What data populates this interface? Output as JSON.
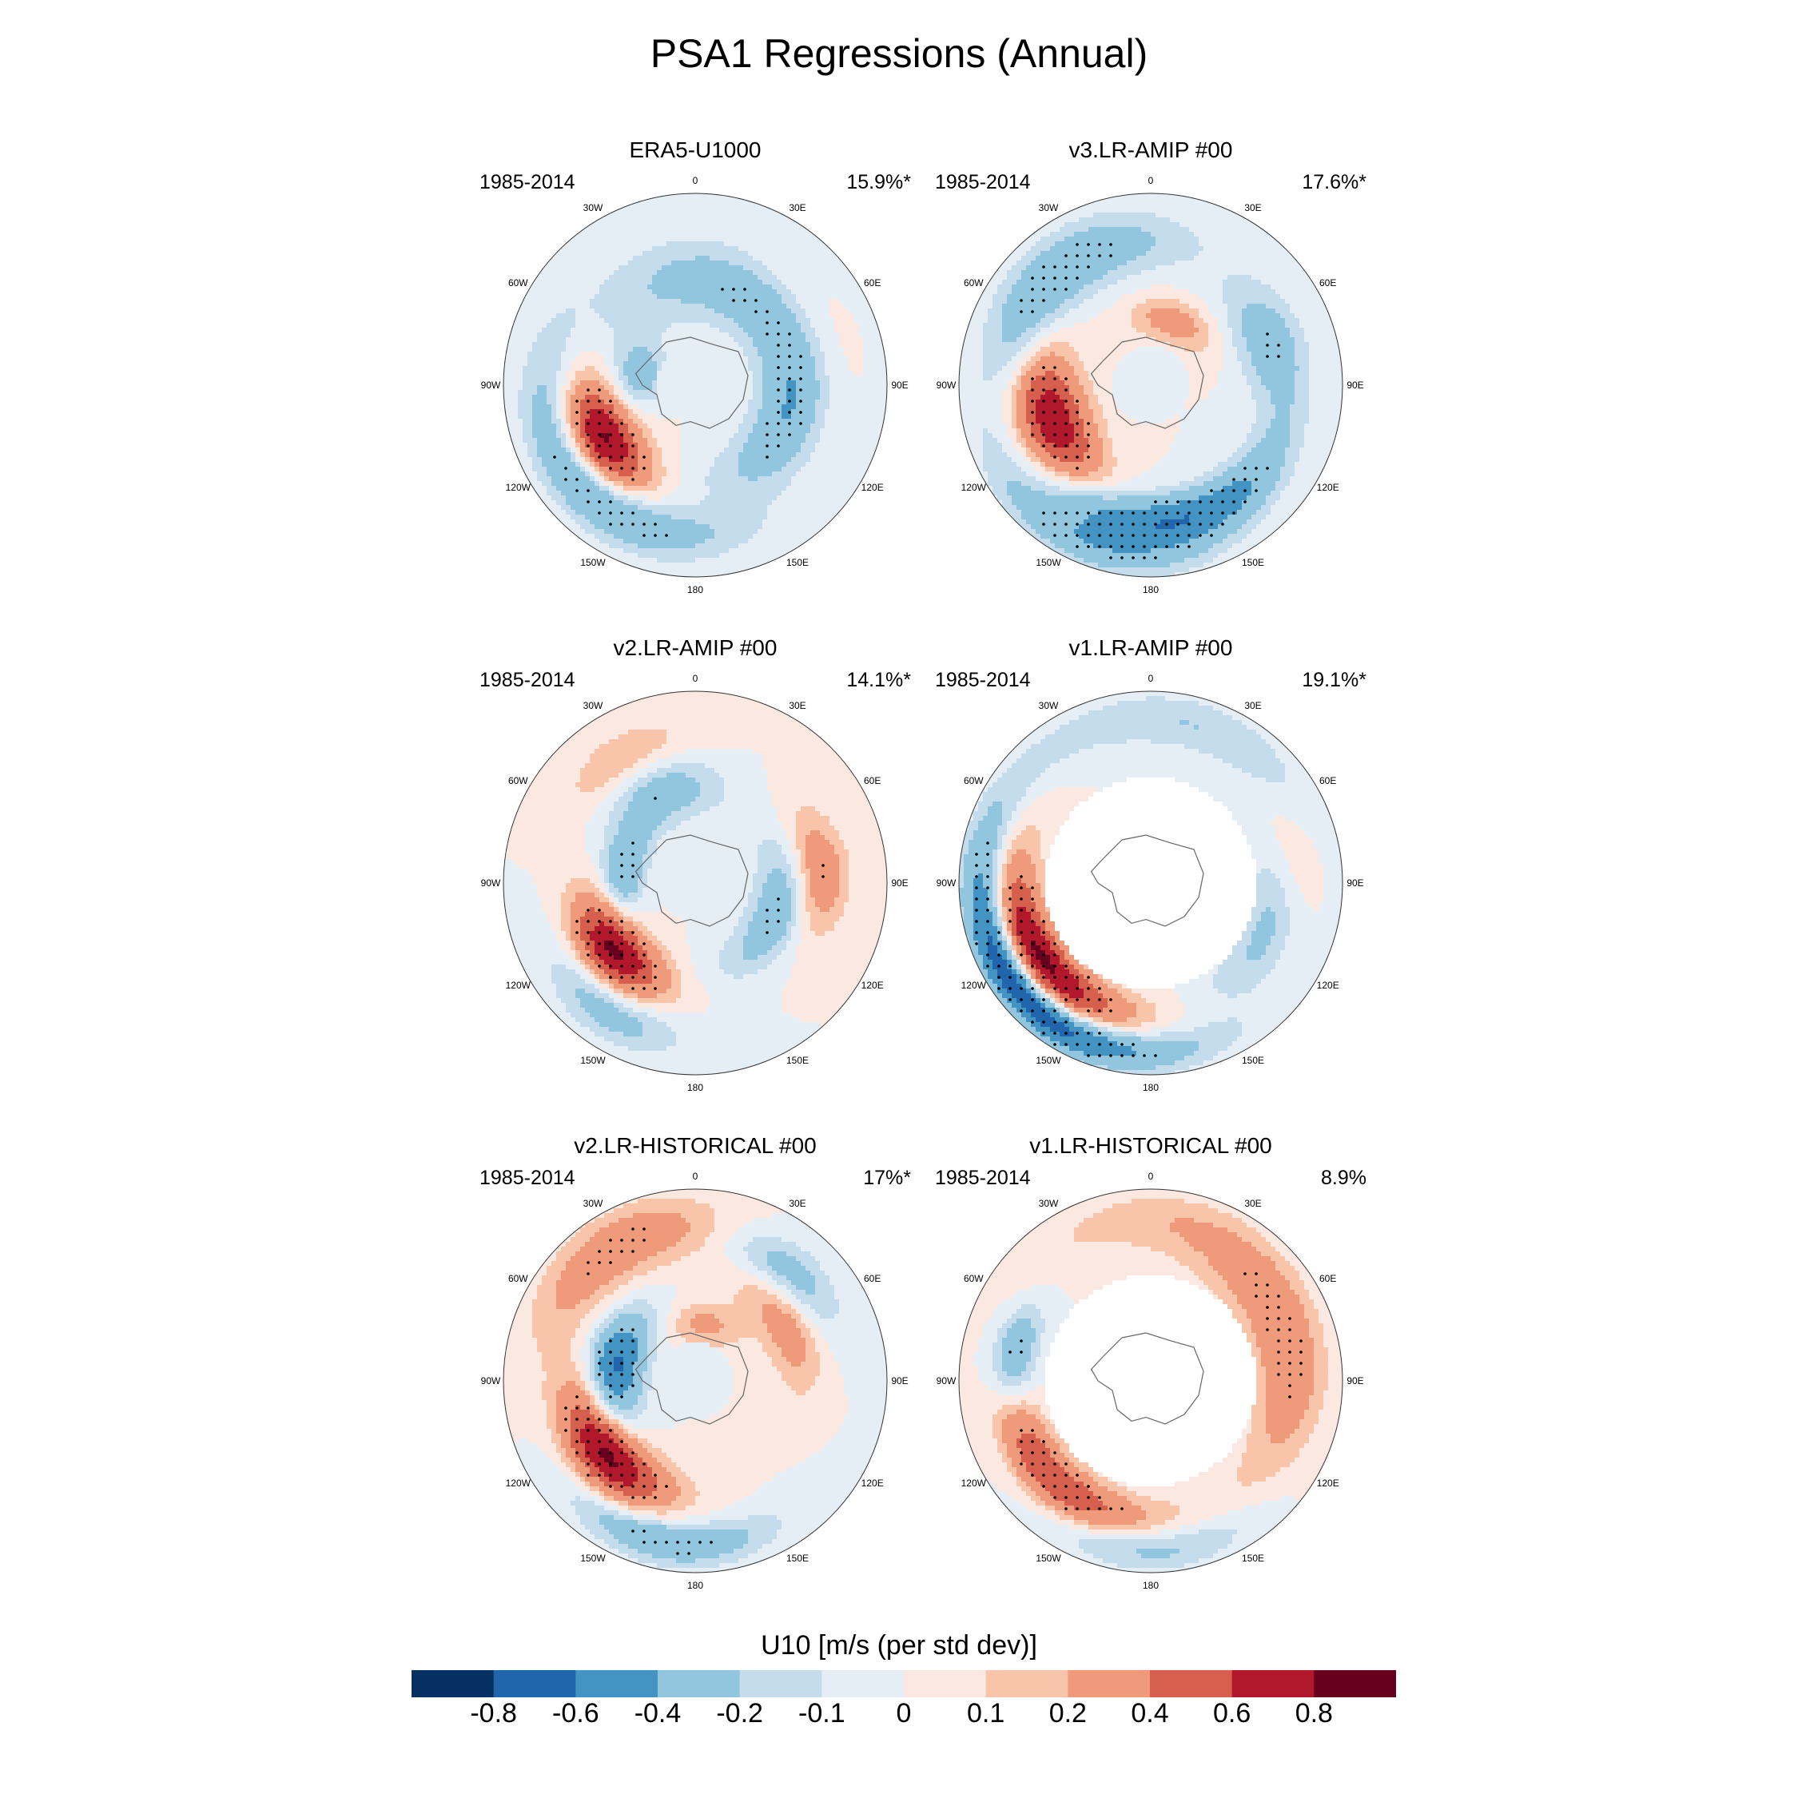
{
  "page": {
    "title": "PSA1 Regressions (Annual)"
  },
  "chart_data": [
    {
      "type": "heatmap",
      "projection": "south-polar-stereographic",
      "title": "ERA5-U1000",
      "period": "1985-2014",
      "variance": "15.9%*",
      "pattern": "era5"
    },
    {
      "type": "heatmap",
      "projection": "south-polar-stereographic",
      "title": "v3.LR-AMIP  #00",
      "period": "1985-2014",
      "variance": "17.6%*",
      "pattern": "v3amip"
    },
    {
      "type": "heatmap",
      "projection": "south-polar-stereographic",
      "title": "v2.LR-AMIP  #00",
      "period": "1985-2014",
      "variance": "14.1%*",
      "pattern": "v2amip"
    },
    {
      "type": "heatmap",
      "projection": "south-polar-stereographic",
      "title": "v1.LR-AMIP  #00",
      "period": "1985-2014",
      "variance": "19.1%*",
      "pattern": "v1amip",
      "masked_interior": true
    },
    {
      "type": "heatmap",
      "projection": "south-polar-stereographic",
      "title": "v2.LR-HISTORICAL  #00",
      "period": "1985-2014",
      "variance": "17%*",
      "pattern": "v2hist"
    },
    {
      "type": "heatmap",
      "projection": "south-polar-stereographic",
      "title": "v1.LR-HISTORICAL  #00",
      "period": "1985-2014",
      "variance": "8.9%",
      "pattern": "v1hist",
      "masked_interior": true
    }
  ],
  "map_labels": {
    "longitudes": [
      "0",
      "30E",
      "60E",
      "90E",
      "120E",
      "150E",
      "180",
      "150W",
      "120W",
      "90W",
      "60W",
      "30W"
    ]
  },
  "colorbar": {
    "title": "U10 [m/s (per std dev)]",
    "colors": [
      "#053061",
      "#2166ac",
      "#4393c3",
      "#92c5de",
      "#c4dcec",
      "#e6eef5",
      "#fbe8e1",
      "#f8c5ab",
      "#f09a7c",
      "#d6604d",
      "#b2182b",
      "#67001f"
    ],
    "ticks": [
      "-0.8",
      "-0.6",
      "-0.4",
      "-0.2",
      "-0.1",
      "0",
      "0.1",
      "0.2",
      "0.4",
      "0.6",
      "0.8"
    ],
    "levels": [
      -0.8,
      -0.6,
      -0.4,
      -0.2,
      -0.1,
      0,
      0.1,
      0.2,
      0.4,
      0.6,
      0.8
    ]
  }
}
